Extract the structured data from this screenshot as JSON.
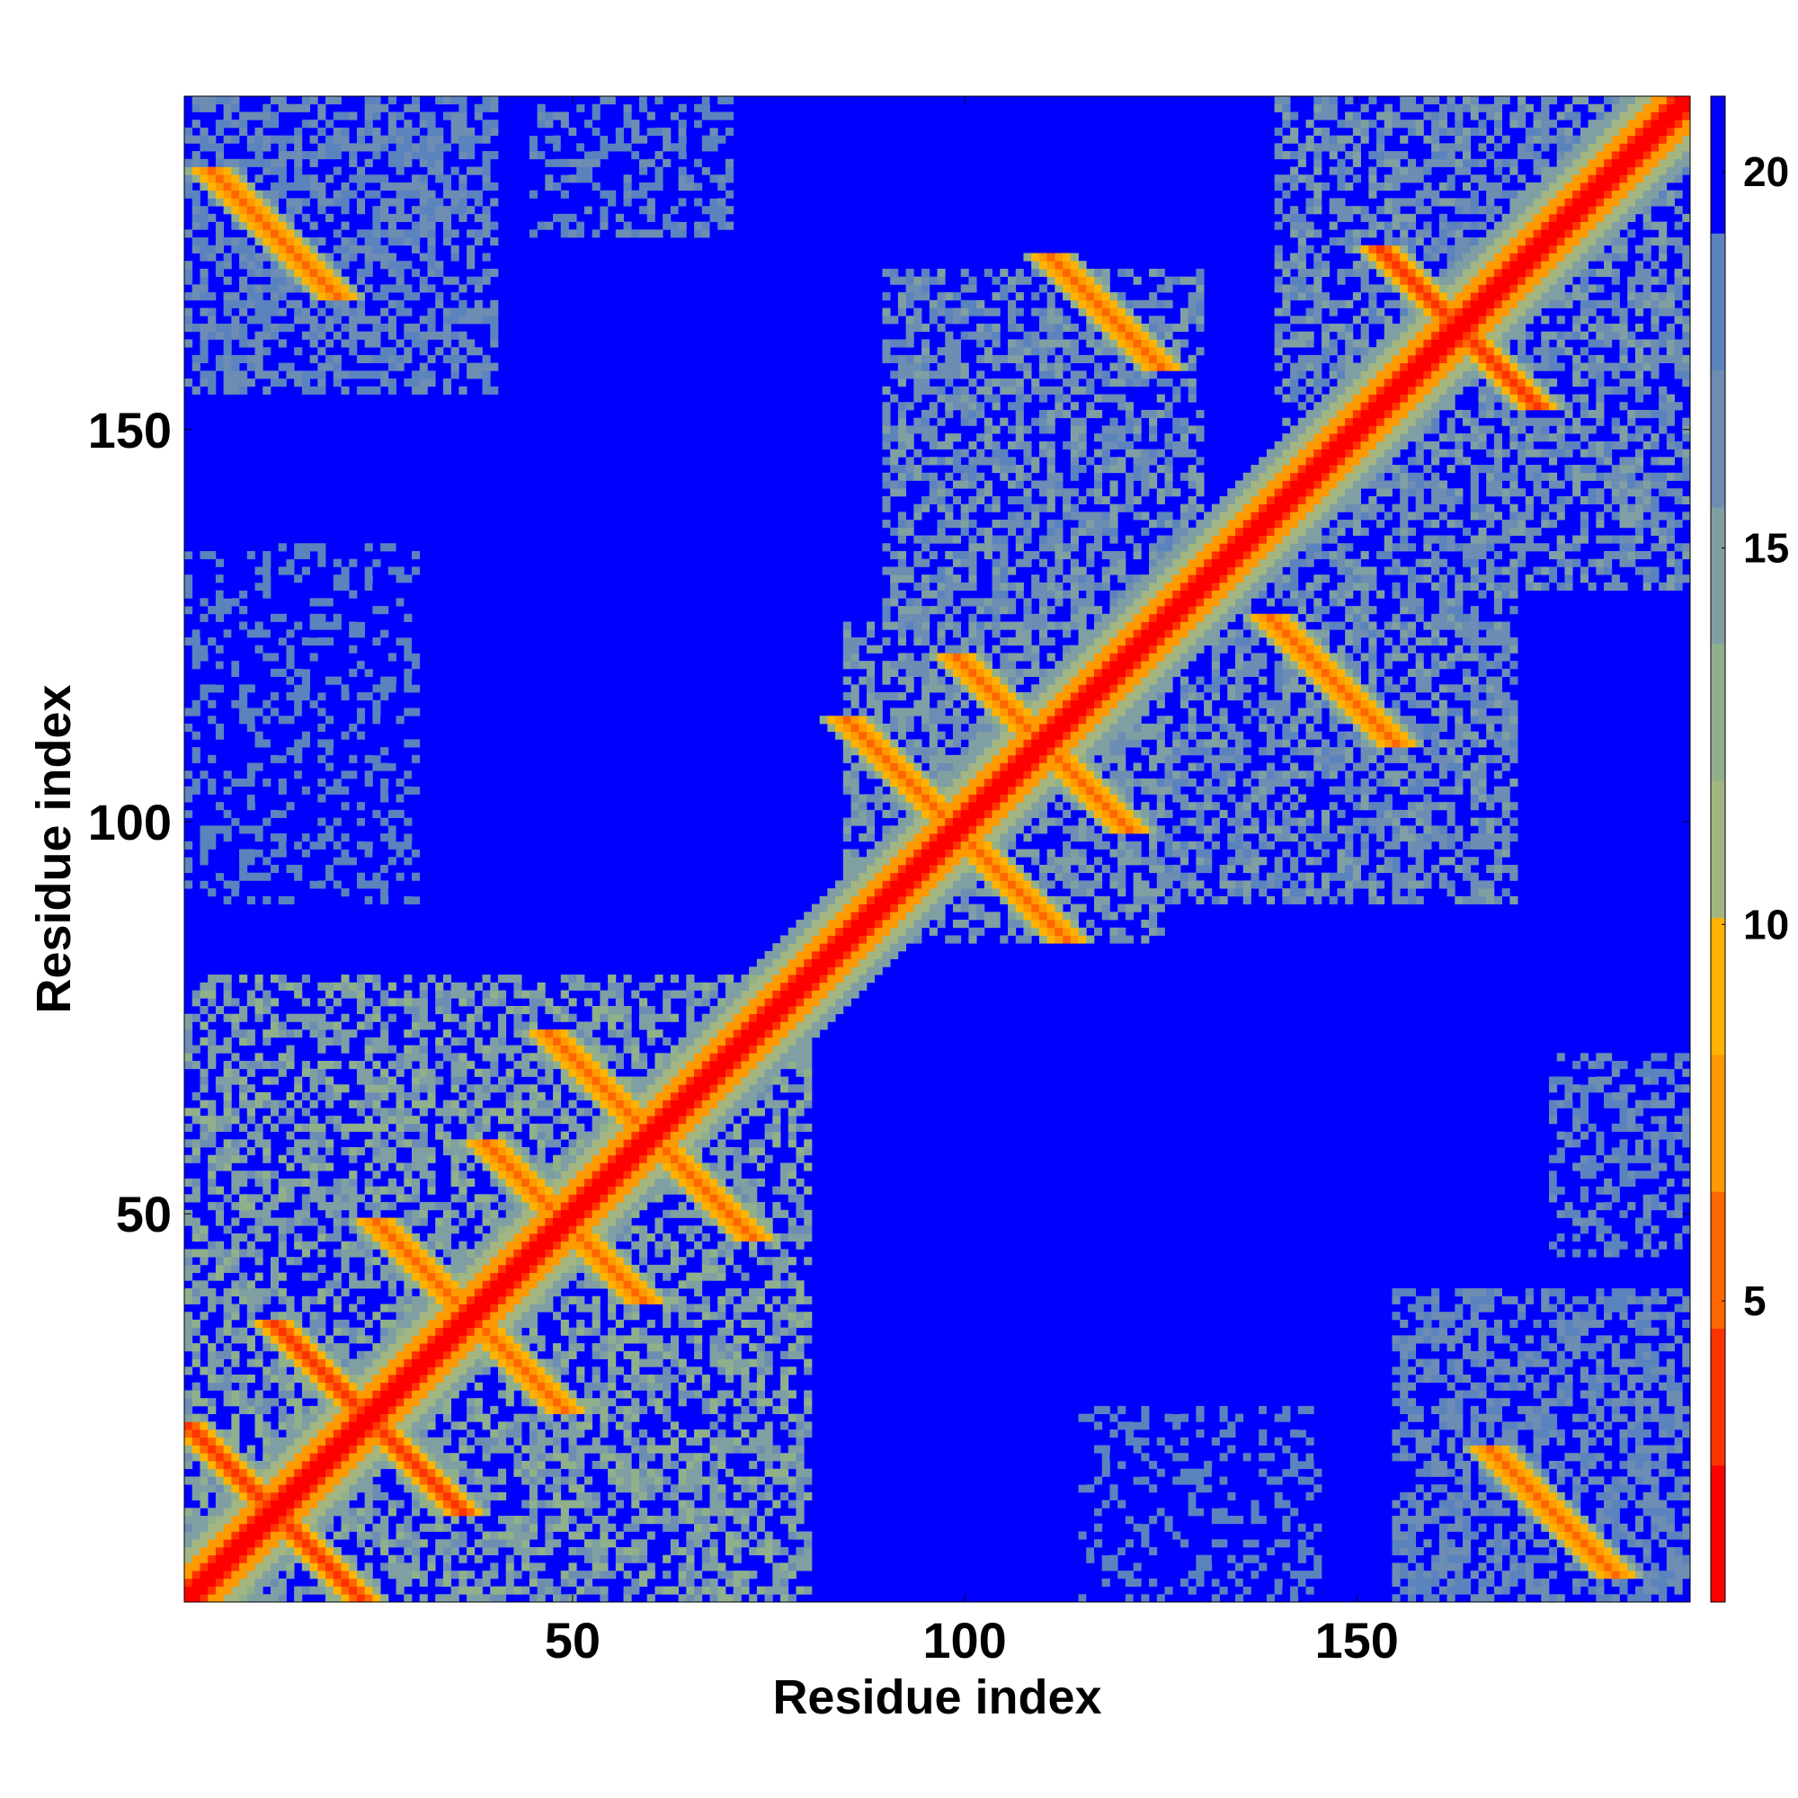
{
  "chart_data": {
    "type": "heatmap",
    "title": "",
    "xlabel": "Residue index",
    "ylabel": "Residue index",
    "xlim": [
      1,
      192
    ],
    "ylim": [
      1,
      192
    ],
    "x_ticks": [
      50,
      100,
      150
    ],
    "y_ticks": [
      50,
      100,
      150
    ],
    "colorbar": {
      "range": [
        1,
        21
      ],
      "ticks": [
        5,
        10,
        15,
        20
      ],
      "colors": [
        "#ff0000",
        "#ff3300",
        "#ff6600",
        "#ff9900",
        "#ffb300",
        "#a3b682",
        "#90b08c",
        "#7f9fa3",
        "#6d8db3",
        "#5b83bd",
        "#0000ff"
      ]
    },
    "background_value": 21,
    "diagonal_value": 1,
    "antidiagonal_bands": [
      {
        "center": [
          12,
          12
        ],
        "half_length": 11,
        "value": 4
      },
      {
        "center": [
          24,
          24
        ],
        "half_length": 12,
        "value": 4
      },
      {
        "center": [
          37,
          37
        ],
        "half_length": 12,
        "value": 5
      },
      {
        "center": [
          49,
          49
        ],
        "half_length": 10,
        "value": 5
      },
      {
        "center": [
          60,
          60
        ],
        "half_length": 13,
        "value": 5
      },
      {
        "center": [
          99,
          99
        ],
        "half_length": 14,
        "value": 5
      },
      {
        "center": [
          110,
          110
        ],
        "half_length": 11,
        "value": 5
      },
      {
        "center": [
          147,
          118
        ],
        "half_length": 8,
        "value": 6
      },
      {
        "center": [
          163,
          163
        ],
        "half_length": 10,
        "value": 4
      },
      {
        "center": [
          118,
          165
        ],
        "half_length": 7,
        "value": 6
      },
      {
        "center": [
          12,
          175
        ],
        "half_length": 8,
        "value": 5
      },
      {
        "center": [
          175,
          12
        ],
        "half_length": 8,
        "value": 5
      }
    ],
    "contact_domains": [
      {
        "x": [
          1,
          80
        ],
        "y": [
          1,
          80
        ],
        "value": 13
      },
      {
        "x": [
          85,
          125
        ],
        "y": [
          85,
          125
        ],
        "value": 14
      },
      {
        "x": [
          125,
          170
        ],
        "y": [
          90,
          130
        ],
        "value": 15
      },
      {
        "x": [
          90,
          130
        ],
        "y": [
          125,
          170
        ],
        "value": 15
      },
      {
        "x": [
          155,
          192
        ],
        "y": [
          1,
          40
        ],
        "value": 16
      },
      {
        "x": [
          1,
          40
        ],
        "y": [
          155,
          192
        ],
        "value": 16
      },
      {
        "x": [
          140,
          192
        ],
        "y": [
          130,
          192
        ],
        "value": 15
      },
      {
        "x": [
          45,
          70
        ],
        "y": [
          175,
          192
        ],
        "value": 17
      },
      {
        "x": [
          175,
          192
        ],
        "y": [
          45,
          70
        ],
        "value": 17
      },
      {
        "x": [
          115,
          145
        ],
        "y": [
          1,
          25
        ],
        "value": 18
      },
      {
        "x": [
          1,
          30
        ],
        "y": [
          90,
          135
        ],
        "value": 18
      }
    ]
  }
}
